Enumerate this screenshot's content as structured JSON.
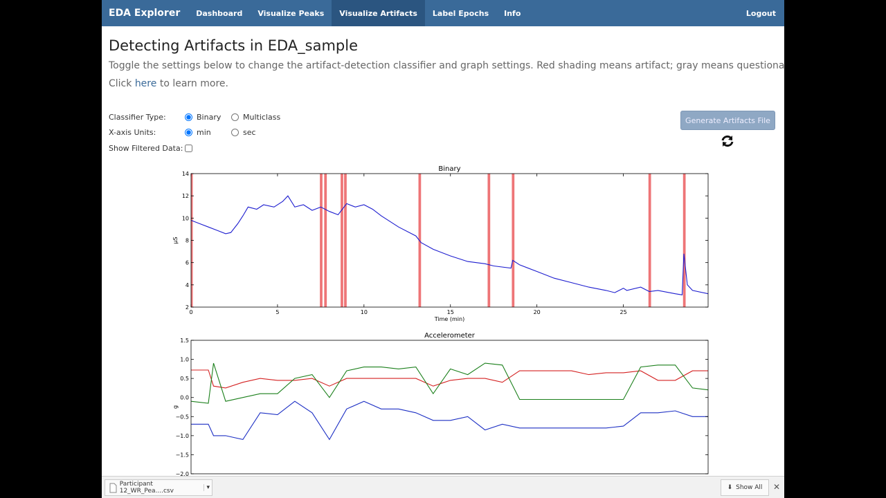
{
  "nav": {
    "brand": "EDA Explorer",
    "items": [
      "Dashboard",
      "Visualize Peaks",
      "Visualize Artifacts",
      "Label Epochs",
      "Info"
    ],
    "active": 2,
    "logout": "Logout"
  },
  "header": {
    "title": "Detecting Artifacts in EDA_sample",
    "description": "Toggle the settings below to change the artifact-detection classifier and graph settings. Red shading means artifact; gray means questionable.",
    "learn_more": {
      "prefix": "Click",
      "link": "here",
      "suffix": "to learn more."
    }
  },
  "settings": [
    {
      "label": "Classifier Type:",
      "options": [
        "Binary",
        "Multiclass"
      ],
      "selected": 0
    },
    {
      "label": "X-axis Units:",
      "options": [
        "min",
        "sec"
      ],
      "selected": 0
    },
    {
      "label": "Show Filtered Data:",
      "checked": false
    }
  ],
  "button": "Generate Artifacts File",
  "chart_data": [
    {
      "type": "line",
      "title": "Binary",
      "x_label": "Time (min)",
      "y_label": "μS",
      "xlim": [
        0,
        29.9
      ],
      "xticks": [
        0,
        5,
        10,
        15,
        20,
        25
      ],
      "ylim": [
        2,
        14
      ],
      "yticks": [
        2,
        4,
        6,
        8,
        10,
        12,
        14
      ],
      "artifact_color": "#e8474a",
      "artifacts": [
        [
          0,
          0.1
        ],
        [
          7.45,
          7.6
        ],
        [
          7.7,
          7.85
        ],
        [
          8.65,
          8.8
        ],
        [
          8.85,
          9.0
        ],
        [
          13.15,
          13.3
        ],
        [
          17.15,
          17.3
        ],
        [
          18.55,
          18.7
        ],
        [
          26.45,
          26.6
        ],
        [
          28.45,
          28.6
        ]
      ],
      "x": [
        0,
        0.5,
        1,
        1.5,
        2,
        2.3,
        2.7,
        3,
        3.3,
        3.8,
        4.2,
        4.8,
        5.3,
        5.6,
        6,
        6.5,
        7,
        7.5,
        8,
        8.5,
        9,
        9.5,
        10,
        10.5,
        11,
        12,
        13,
        13.3,
        14,
        15,
        16,
        17,
        17.5,
        18.5,
        18.6,
        19,
        20,
        21,
        22,
        23,
        24,
        24.5,
        25,
        25.2,
        26,
        26.5,
        27,
        28,
        28.4,
        28.5,
        28.7,
        29,
        29.9
      ],
      "series": [
        {
          "color": "#1c1ccf",
          "values": [
            9.8,
            9.5,
            9.2,
            8.9,
            8.6,
            8.7,
            9.5,
            10.2,
            11,
            10.8,
            11.2,
            11,
            11.5,
            12,
            11,
            11.2,
            10.7,
            11,
            10.6,
            10.3,
            11.3,
            11,
            11.2,
            10.8,
            10.2,
            9.2,
            8.4,
            7.8,
            7.2,
            6.6,
            6.1,
            5.9,
            5.7,
            5.5,
            6.2,
            5.8,
            5.2,
            4.6,
            4.2,
            3.8,
            3.5,
            3.3,
            3.7,
            3.5,
            3.8,
            3.4,
            3.5,
            3.2,
            3.1,
            6.8,
            4,
            3.5,
            3.2
          ]
        }
      ]
    },
    {
      "type": "line",
      "title": "Accelerometer",
      "y_label": "g",
      "xlim": [
        0,
        29.9
      ],
      "ylim": [
        -2,
        1.5
      ],
      "yticks": [
        {
          "value": -2,
          "label": "−2.0"
        },
        {
          "value": -1.5,
          "label": "−1.5"
        },
        {
          "value": -1,
          "label": "−1.0"
        },
        {
          "value": -0.5,
          "label": "−0.5"
        },
        {
          "value": 0,
          "label": "0.0"
        },
        {
          "value": 0.5,
          "label": "0.5"
        },
        {
          "value": 1,
          "label": "1.0"
        },
        {
          "value": 1.5,
          "label": "1.5"
        }
      ],
      "x": [
        0,
        1,
        1.3,
        2,
        3,
        4,
        5,
        6,
        7,
        8,
        9,
        10,
        11,
        12,
        13,
        14,
        15,
        16,
        17,
        18,
        19,
        20,
        22,
        23,
        24,
        25,
        26,
        27,
        28,
        29,
        29.9
      ],
      "series": [
        {
          "color": "#d42020",
          "values": [
            0.72,
            0.72,
            0.3,
            0.25,
            0.4,
            0.5,
            0.45,
            0.45,
            0.5,
            0.3,
            0.5,
            0.5,
            0.5,
            0.5,
            0.5,
            0.3,
            0.45,
            0.5,
            0.5,
            0.4,
            0.7,
            0.7,
            0.7,
            0.6,
            0.65,
            0.65,
            0.7,
            0.45,
            0.45,
            0.7,
            0.7
          ]
        },
        {
          "color": "#1a7f1a",
          "values": [
            -0.1,
            -0.15,
            0.9,
            -0.1,
            0,
            0.1,
            0.1,
            0.5,
            0.6,
            0,
            0.7,
            0.8,
            0.8,
            0.75,
            0.8,
            0.1,
            0.75,
            0.6,
            0.9,
            0.85,
            -0.05,
            -0.05,
            -0.05,
            -0.05,
            -0.05,
            -0.05,
            0.8,
            0.85,
            0.85,
            0.25,
            0.2
          ]
        },
        {
          "color": "#1c2fc4",
          "values": [
            -0.7,
            -0.7,
            -1,
            -1,
            -1.1,
            -0.4,
            -0.45,
            -0.1,
            -0.4,
            -1.1,
            -0.3,
            -0.1,
            -0.3,
            -0.3,
            -0.4,
            -0.6,
            -0.6,
            -0.5,
            -0.85,
            -0.7,
            -0.8,
            -0.8,
            -0.8,
            -0.8,
            -0.8,
            -0.75,
            -0.4,
            -0.4,
            -0.35,
            -0.5,
            -0.5
          ]
        }
      ]
    }
  ],
  "downloads": {
    "file": "Participant 12_WR_Pea....csv",
    "show_all": "Show All"
  }
}
